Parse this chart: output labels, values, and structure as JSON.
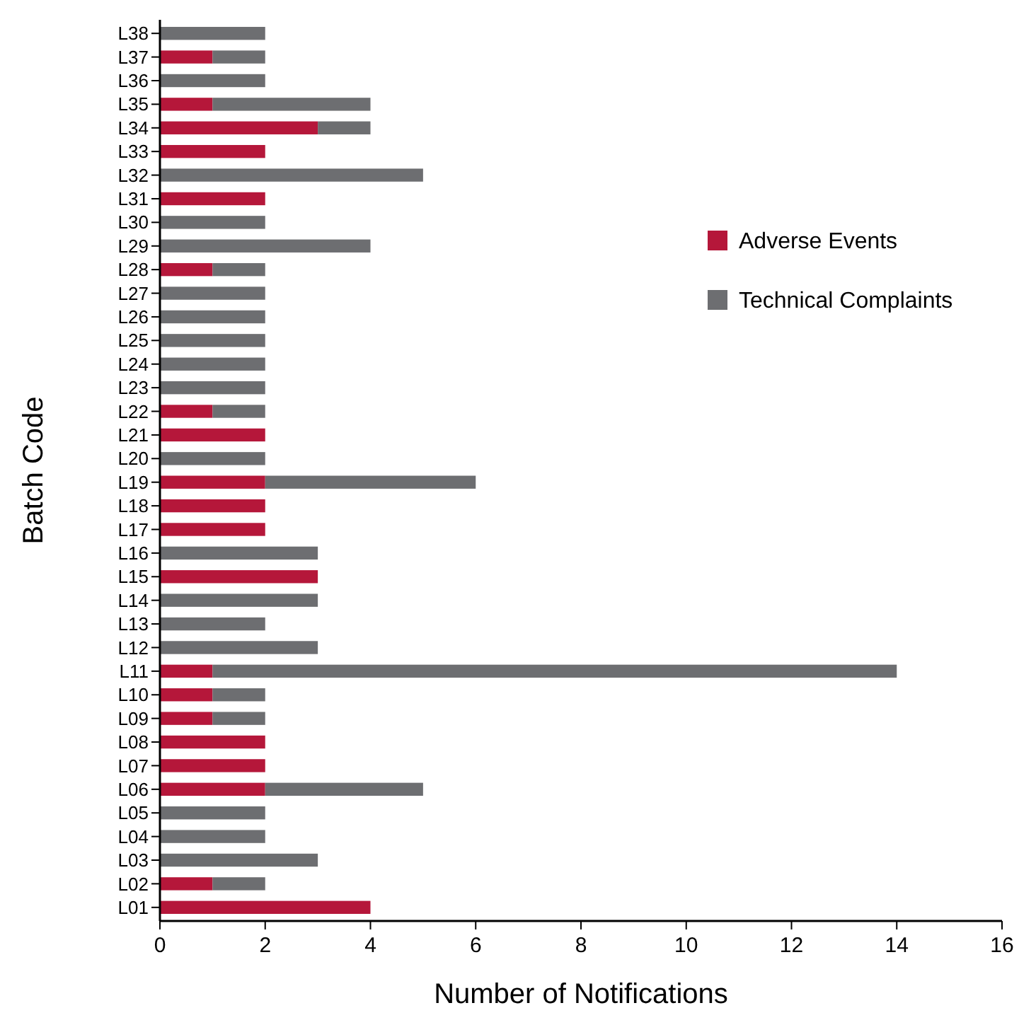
{
  "chart_data": {
    "type": "bar",
    "orientation": "horizontal",
    "stacked": true,
    "xlabel": "Number of Notifications",
    "ylabel": "Batch Code",
    "categories": [
      "L38",
      "L37",
      "L36",
      "L35",
      "L34",
      "L33",
      "L32",
      "L31",
      "L30",
      "L29",
      "L28",
      "L27",
      "L26",
      "L25",
      "L24",
      "L23",
      "L22",
      "L21",
      "L20",
      "L19",
      "L18",
      "L17",
      "L16",
      "L15",
      "L14",
      "L13",
      "L12",
      "L11",
      "L10",
      "L09",
      "L08",
      "L07",
      "L06",
      "L05",
      "L04",
      "L03",
      "L02",
      "L01"
    ],
    "series": [
      {
        "name": "Adverse Events",
        "color": "#b5173a",
        "values": [
          0,
          1,
          0,
          1,
          3,
          2,
          0,
          2,
          0,
          0,
          1,
          0,
          0,
          0,
          0,
          0,
          1,
          2,
          0,
          2,
          2,
          2,
          0,
          3,
          0,
          0,
          0,
          1,
          1,
          1,
          2,
          2,
          2,
          0,
          0,
          0,
          1,
          4
        ]
      },
      {
        "name": "Technical Complaints",
        "color": "#6d6e71",
        "values": [
          2,
          1,
          2,
          3,
          1,
          0,
          5,
          0,
          2,
          4,
          1,
          2,
          2,
          2,
          2,
          2,
          1,
          0,
          2,
          4,
          0,
          0,
          3,
          0,
          3,
          2,
          3,
          13,
          1,
          1,
          0,
          0,
          3,
          2,
          2,
          3,
          1,
          0
        ]
      }
    ],
    "xlim": [
      0,
      16
    ],
    "xticks": [
      0,
      2,
      4,
      6,
      8,
      10,
      12,
      14,
      16
    ],
    "grid": false,
    "legend": "right"
  }
}
